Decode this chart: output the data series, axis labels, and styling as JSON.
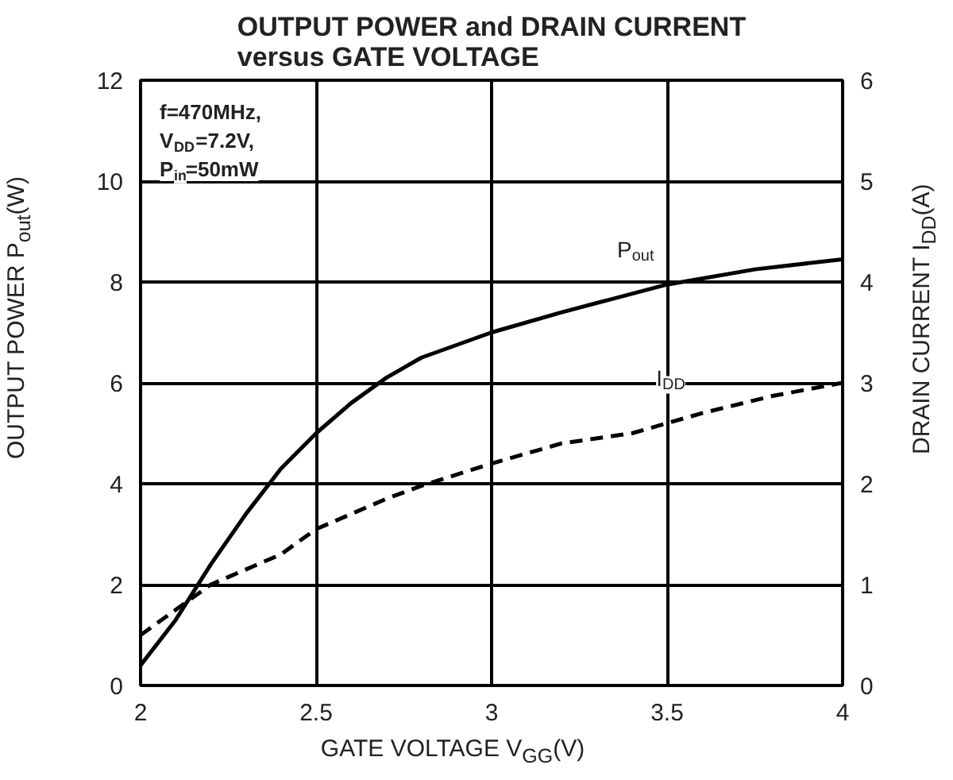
{
  "chart_data": {
    "type": "line",
    "title": "OUTPUT POWER and DRAIN CURRENT\nversus GATE VOLTAGE",
    "xlabel": "GATE VOLTAGE V$_{GG}$(V)",
    "ylabel": "OUTPUT POWER P$_{out}$(W)",
    "y2label": "DRAIN CURRENT I$_{DD}$(A)",
    "annotations": [
      "f=470MHz,",
      "V$_{DD}$=7.2V,",
      "P$_{in}$=50mW"
    ],
    "series": [
      {
        "name": "P$_{out}$",
        "color": "#000000",
        "line_style": "solid",
        "x": [
          2,
          2.1,
          2.2,
          2.3,
          2.4,
          2.5,
          2.6,
          2.7,
          2.8,
          3.0,
          3.2,
          3.5,
          3.75,
          4
        ],
        "values": [
          0.4,
          1.3,
          2.4,
          3.4,
          4.3,
          5.0,
          5.6,
          6.1,
          6.5,
          7.0,
          7.4,
          7.95,
          8.25,
          8.45
        ]
      },
      {
        "name": "I$_{DD}$",
        "color": "#000000",
        "line_style": "dashed",
        "axis": "y2",
        "x": [
          2,
          2.1,
          2.2,
          2.4,
          2.5,
          2.7,
          2.8,
          3.0,
          3.2,
          3.4,
          3.6,
          3.8,
          4
        ],
        "values": [
          0.5,
          0.75,
          1.0,
          1.3,
          1.55,
          1.85,
          1.98,
          2.2,
          2.4,
          2.5,
          2.7,
          2.87,
          3.0
        ]
      }
    ],
    "xlim": [
      2,
      4
    ],
    "xticks": [
      2,
      2.5,
      3,
      3.5,
      4
    ],
    "ylim": [
      0,
      12
    ],
    "yticks": [
      0,
      2,
      4,
      6,
      8,
      10,
      12
    ],
    "y2lim": [
      0,
      6
    ],
    "y2ticks": [
      0,
      1,
      2,
      3,
      4,
      5,
      6
    ],
    "grid": true
  }
}
